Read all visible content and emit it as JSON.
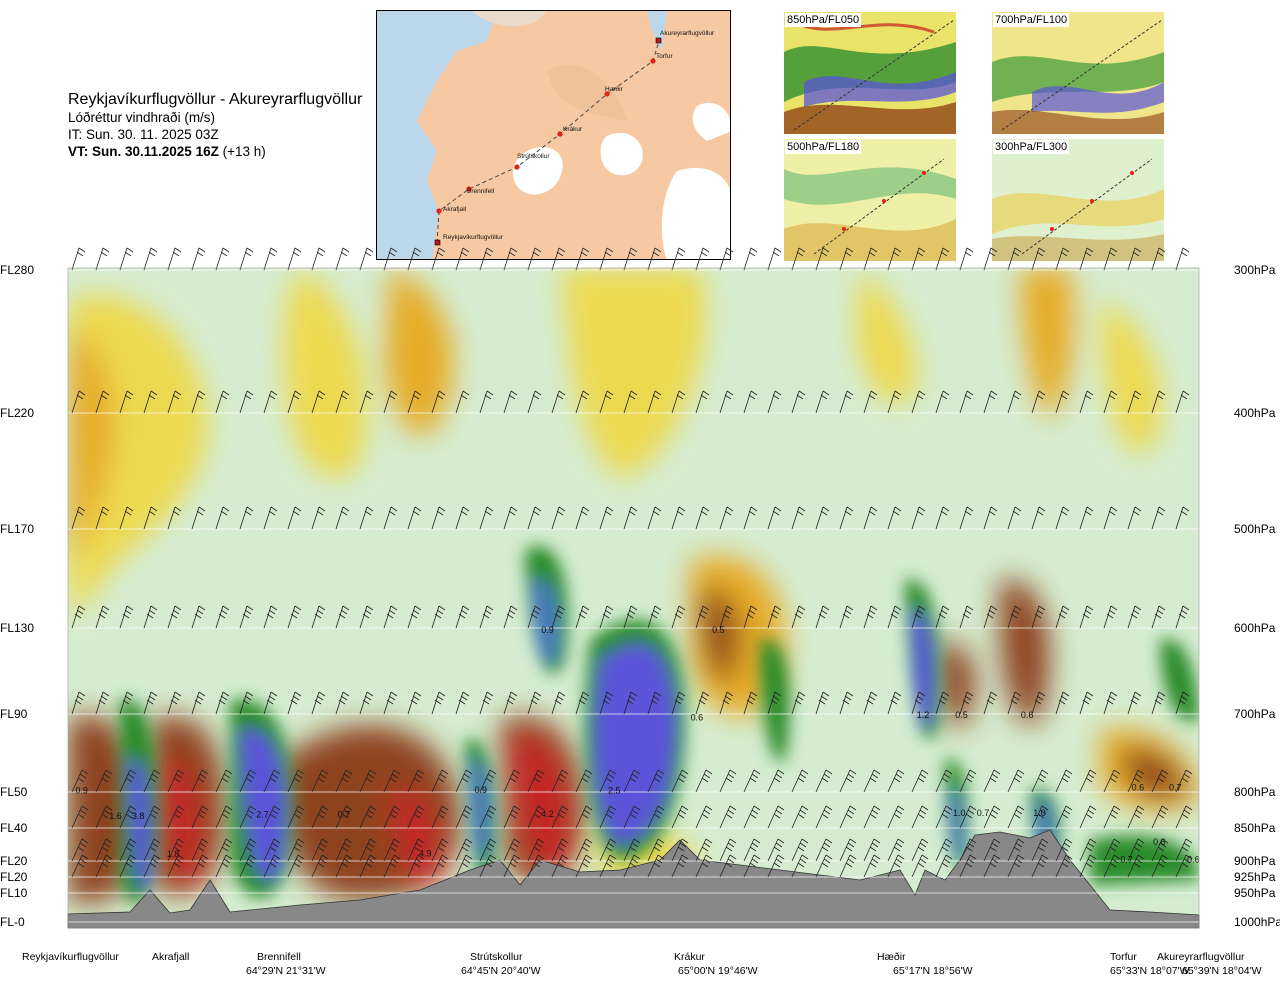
{
  "header": {
    "route": "Reykjavíkurflugvöllur - Akureyrarflugvöllur",
    "variable": "Lóðréttur vindhraði (m/s)",
    "it": "IT: Sun. 30. 11. 2025 03Z",
    "vt_bold": "VT: Sun. 30.11.2025 16Z",
    "vt_offset": "(+13 h)"
  },
  "map": {
    "waypoints": [
      {
        "name": "Akureyrarflugvöllur",
        "kind": "airport"
      },
      {
        "name": "Torfur",
        "kind": "point"
      },
      {
        "name": "Hæðir",
        "kind": "point"
      },
      {
        "name": "Krákur",
        "kind": "point"
      },
      {
        "name": "Strútskollur",
        "kind": "point"
      },
      {
        "name": "Brennifell",
        "kind": "point"
      },
      {
        "name": "Akrafjall",
        "kind": "point"
      },
      {
        "name": "Reykjavíkurflugvöllur",
        "kind": "airport"
      }
    ],
    "colors": {
      "sea": "#bcd6ea",
      "land": "#f6c9a3",
      "ice": "#ffffff",
      "route": "#333333",
      "point": "#e2231a"
    }
  },
  "thumbnails": [
    {
      "label": "850hPa/FL050"
    },
    {
      "label": "700hPa/FL100"
    },
    {
      "label": "500hPa/FL180"
    },
    {
      "label": "300hPa/FL300"
    }
  ],
  "chart_data": {
    "type": "heatmap",
    "title": "Lóðréttur vindhraði (m/s)",
    "left_axis_labels": [
      "FL280",
      "FL220",
      "FL170",
      "FL130",
      "FL90",
      "FL50",
      "FL40",
      "FL20",
      "FL20",
      "FL10",
      "FL-0"
    ],
    "right_axis_labels": [
      "300hPa",
      "400hPa",
      "500hPa",
      "600hPa",
      "700hPa",
      "800hPa",
      "850hPa",
      "900hPa",
      "925hPa",
      "950hPa",
      "1000hPa"
    ],
    "pressure_levels_hpa": [
      300,
      400,
      500,
      600,
      700,
      800,
      850,
      900,
      925,
      950,
      1000
    ],
    "x_locations": [
      {
        "name": "Reykjavíkurflugvöllur",
        "coord": ""
      },
      {
        "name": "Akrafjall",
        "coord": ""
      },
      {
        "name": "Brennifell",
        "coord": "64°29'N 21°31'W"
      },
      {
        "name": "Strútskollur",
        "coord": "64°45'N 20°40'W"
      },
      {
        "name": "Krákur",
        "coord": "65°00'N 19°46'W"
      },
      {
        "name": "Hæðir",
        "coord": "65°17'N 18°56'W"
      },
      {
        "name": "Torfur",
        "coord": "65°33'N 18°07'W"
      },
      {
        "name": "Akureyrarflugvöllur",
        "coord": "65°39'N 18°04'W"
      }
    ],
    "annotations": [
      {
        "text": "0.9",
        "dist": 0.012,
        "hpa": 797
      },
      {
        "text": "1.6",
        "dist": 0.042,
        "hpa": 832
      },
      {
        "text": "3.8",
        "dist": 0.062,
        "hpa": 832
      },
      {
        "text": "1.8",
        "dist": 0.093,
        "hpa": 888
      },
      {
        "text": "2.7",
        "dist": 0.172,
        "hpa": 830
      },
      {
        "text": "0.7",
        "dist": 0.244,
        "hpa": 830
      },
      {
        "text": "4.9",
        "dist": 0.316,
        "hpa": 887
      },
      {
        "text": "0.9",
        "dist": 0.365,
        "hpa": 796
      },
      {
        "text": "4.2",
        "dist": 0.424,
        "hpa": 829
      },
      {
        "text": "0.9",
        "dist": 0.424,
        "hpa": 601
      },
      {
        "text": "2.5",
        "dist": 0.483,
        "hpa": 797
      },
      {
        "text": "0.5",
        "dist": 0.575,
        "hpa": 601
      },
      {
        "text": "0.6",
        "dist": 0.556,
        "hpa": 703
      },
      {
        "text": "1.2",
        "dist": 0.756,
        "hpa": 700
      },
      {
        "text": "0.5",
        "dist": 0.79,
        "hpa": 700
      },
      {
        "text": "0.6",
        "dist": 0.848,
        "hpa": 700
      },
      {
        "text": "1.0",
        "dist": 0.788,
        "hpa": 828
      },
      {
        "text": "0.7",
        "dist": 0.809,
        "hpa": 828
      },
      {
        "text": "1.0",
        "dist": 0.859,
        "hpa": 828
      },
      {
        "text": "0.6",
        "dist": 0.946,
        "hpa": 793
      },
      {
        "text": "0.7",
        "dist": 0.979,
        "hpa": 793
      },
      {
        "text": "0.6",
        "dist": 0.965,
        "hpa": 870
      },
      {
        "text": "0.7",
        "dist": 0.936,
        "hpa": 896
      },
      {
        "text": "0.6",
        "dist": 0.995,
        "hpa": 896
      }
    ],
    "regions": [
      {
        "class": "strong_up",
        "dist": 0.062,
        "hpa_top": 780,
        "hpa_bottom": 960
      },
      {
        "class": "up",
        "dist": 0.172,
        "hpa_top": 720,
        "hpa_bottom": 960
      },
      {
        "class": "strong_down",
        "dist": 0.093,
        "hpa_top": 760,
        "hpa_bottom": 960
      },
      {
        "class": "strong_down",
        "dist": 0.316,
        "hpa_top": 760,
        "hpa_bottom": 950
      },
      {
        "class": "strong_down",
        "dist": 0.424,
        "hpa_top": 730,
        "hpa_bottom": 950
      },
      {
        "class": "up",
        "dist": 0.365,
        "hpa_top": 760,
        "hpa_bottom": 900
      },
      {
        "class": "up",
        "dist": 0.424,
        "hpa_top": 560,
        "hpa_bottom": 640
      },
      {
        "class": "up",
        "dist": 0.503,
        "hpa_top": 600,
        "hpa_bottom": 880
      },
      {
        "class": "up",
        "dist": 0.756,
        "hpa_top": 580,
        "hpa_bottom": 800
      },
      {
        "class": "down",
        "dist": 0.848,
        "hpa_top": 580,
        "hpa_bottom": 760
      },
      {
        "class": "down",
        "dist": 0.575,
        "hpa_top": 560,
        "hpa_bottom": 720
      },
      {
        "class": "up",
        "dist": 0.788,
        "hpa_top": 780,
        "hpa_bottom": 900
      },
      {
        "class": "up",
        "dist": 0.859,
        "hpa_top": 790,
        "hpa_bottom": 880
      },
      {
        "class": "down",
        "dist": 0.963,
        "hpa_top": 760,
        "hpa_bottom": 820
      },
      {
        "class": "up",
        "dist": 0.963,
        "hpa_top": 840,
        "hpa_bottom": 920
      }
    ],
    "colors": {
      "strong_down": "#c41c1c",
      "down": "#8b3a12",
      "weak_down": "#e8a81a",
      "slight_down": "#efd94a",
      "neutral_down": "#f6ef9e",
      "neutral_up": "#d5ecd1",
      "slight_up": "#a8d4a0",
      "up": "#2a8c2a",
      "strong_up": "#5a55d8",
      "terrain": "#888888"
    },
    "grid": true
  }
}
